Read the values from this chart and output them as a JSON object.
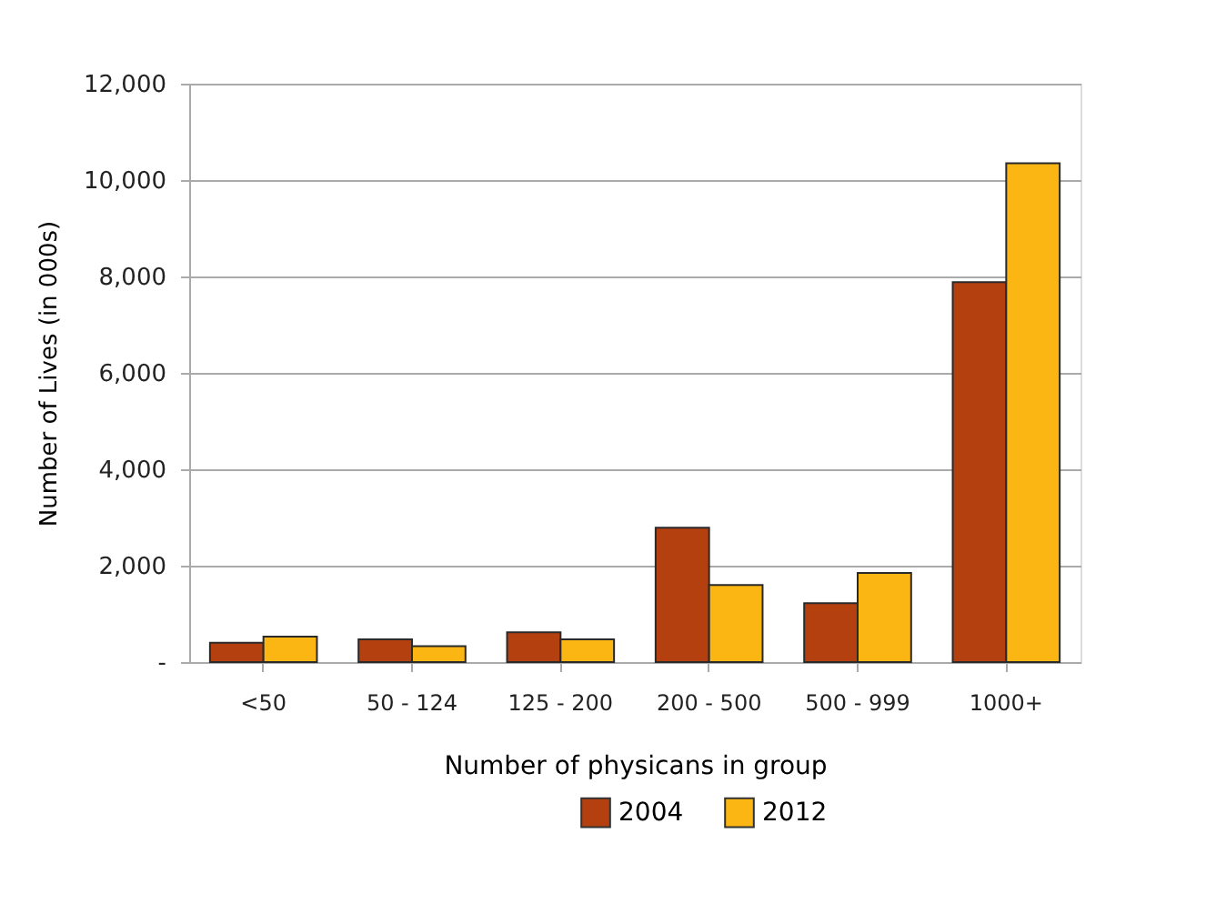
{
  "chart_data": {
    "type": "bar",
    "xlabel": "Number of physicans in group",
    "ylabel": "Number of Lives (in 000s)",
    "categories": [
      "<50",
      "50 - 124",
      "125 - 200",
      "200 - 500",
      "500 - 999",
      "1000+"
    ],
    "series": [
      {
        "name": "2004",
        "color": "#b5400f",
        "values": [
          400,
          470,
          620,
          2790,
          1220,
          7880
        ]
      },
      {
        "name": "2012",
        "color": "#fbb614",
        "values": [
          530,
          330,
          470,
          1600,
          1850,
          10350
        ]
      }
    ],
    "ylim": [
      0,
      12000
    ],
    "yticks": [
      {
        "value": 0,
        "label": "-"
      },
      {
        "value": 2000,
        "label": "2,000"
      },
      {
        "value": 4000,
        "label": "4,000"
      },
      {
        "value": 6000,
        "label": "6,000"
      },
      {
        "value": 8000,
        "label": "8,000"
      },
      {
        "value": 10000,
        "label": "10,000"
      },
      {
        "value": 12000,
        "label": "12,000"
      }
    ],
    "grid": "y",
    "legend": "bottom"
  }
}
